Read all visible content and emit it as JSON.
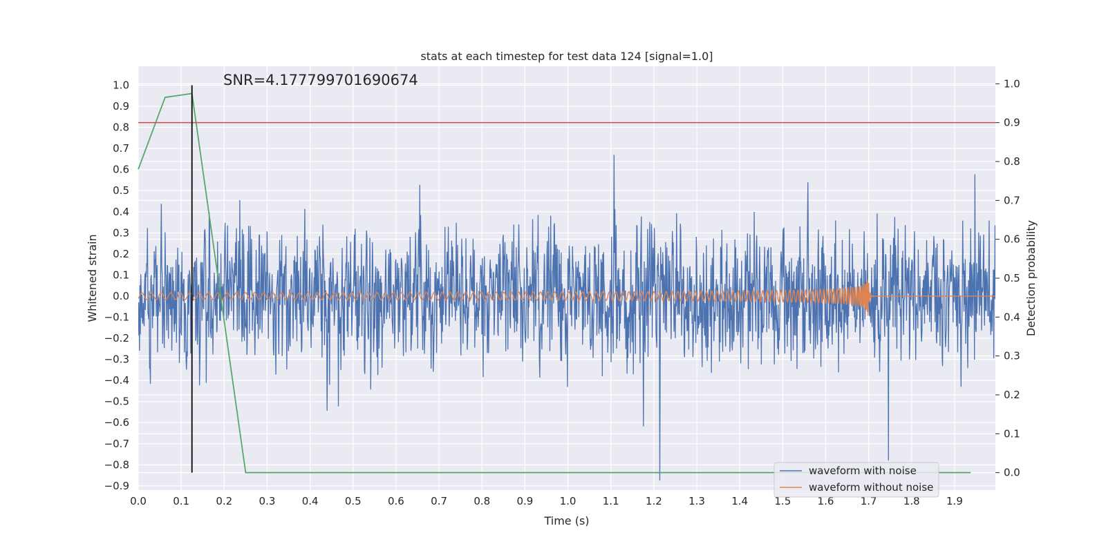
{
  "chart_data": {
    "type": "line",
    "title": "stats at each timestep for test data 124 [signal=1.0]",
    "xlabel": "Time (s)",
    "ylabel": "Whitened strain",
    "y2label": "Detection probability",
    "xlim": [
      0.0,
      1.995
    ],
    "ylim": [
      -0.92,
      1.09
    ],
    "y2lim": [
      -0.045,
      1.045
    ],
    "xticks": [
      "0.0",
      "0.1",
      "0.2",
      "0.3",
      "0.4",
      "0.5",
      "0.6",
      "0.7",
      "0.8",
      "0.9",
      "1.0",
      "1.1",
      "1.2",
      "1.3",
      "1.4",
      "1.5",
      "1.6",
      "1.7",
      "1.8",
      "1.9"
    ],
    "yticks": [
      "1.0",
      "0.9",
      "0.8",
      "0.7",
      "0.6",
      "0.5",
      "0.4",
      "0.3",
      "0.2",
      "0.1",
      "0.0",
      "−0.1",
      "−0.2",
      "−0.3",
      "−0.4",
      "−0.5",
      "−0.6",
      "−0.7",
      "−0.8",
      "−0.9"
    ],
    "y2ticks": [
      "1.0",
      "0.9",
      "0.8",
      "0.7",
      "0.6",
      "0.5",
      "0.4",
      "0.3",
      "0.2",
      "0.1",
      "0.0"
    ],
    "grid": true,
    "legend_placement": "lower-right",
    "annotation": "SNR=4.177799701690674",
    "threshold_probability": 0.9,
    "marker_time": 0.125,
    "series": [
      {
        "name": "waveform with noise",
        "color": "#4c72b0",
        "kind": "noisy-strain",
        "sample_rate": 1024,
        "duration": 2.0
      },
      {
        "name": "waveform without noise",
        "color": "#dd8452",
        "kind": "chirp",
        "merger_time": 1.7
      },
      {
        "name": "",
        "color": "#55a868",
        "axis": "right",
        "x": [
          0.0,
          0.0625,
          0.125,
          0.25,
          0.3125,
          0.375,
          0.5,
          0.75,
          1.0,
          1.25,
          1.5,
          1.75,
          1.9375
        ],
        "y": [
          0.78,
          0.965,
          0.975,
          0.0,
          0.0,
          0.0,
          0.0,
          0.0,
          0.0,
          0.0,
          0.0,
          0.0,
          0.0
        ]
      }
    ],
    "threshold_color": "#c44e52",
    "marker_color": "#000000"
  }
}
